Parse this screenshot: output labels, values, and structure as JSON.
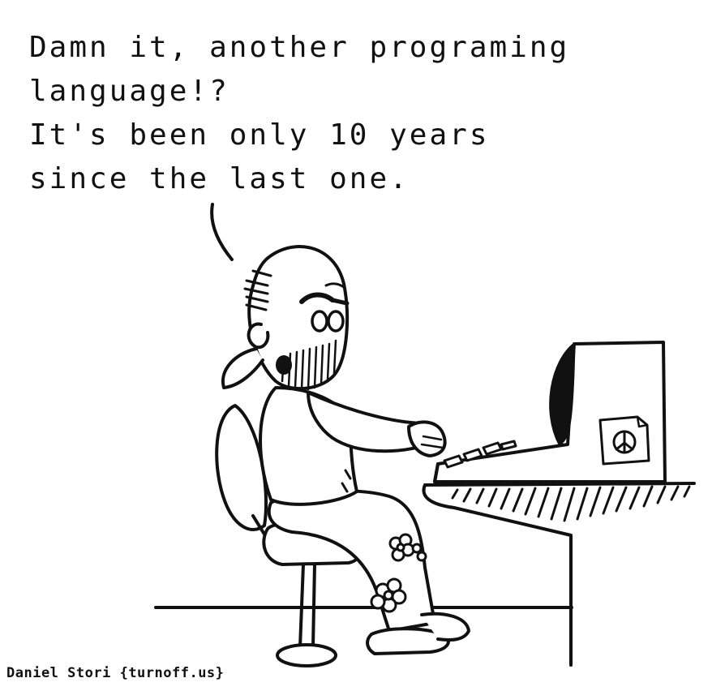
{
  "speech_bubble": {
    "lines": [
      "Damn it, another programing",
      "language!?",
      "It's been only 10 years",
      "since the last one."
    ]
  },
  "credit": {
    "author": "Daniel Stori",
    "site": "{turnoff.us}"
  },
  "icons": {
    "sticker": "peace-sign-icon"
  },
  "colors": {
    "ink": "#111111",
    "paper": "#ffffff"
  }
}
